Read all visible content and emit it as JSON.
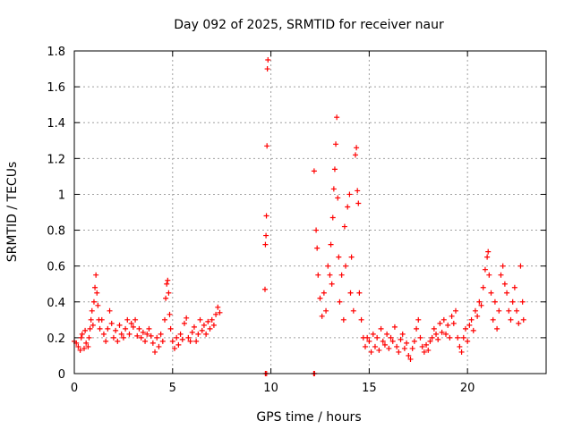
{
  "chart_data": {
    "type": "scatter",
    "title": "Day 092 of 2025, SRMTID for receiver naur",
    "xlabel": "GPS time / hours",
    "ylabel": "SRMTID / TECUs",
    "xlim": [
      0,
      24
    ],
    "ylim": [
      0,
      1.8
    ],
    "grid": true,
    "legend": "none",
    "marker": "+",
    "color": "#ff0000",
    "x_ticks": [
      {
        "value": 0,
        "label": "0"
      },
      {
        "value": 5,
        "label": "5"
      },
      {
        "value": 10,
        "label": "10"
      },
      {
        "value": 15,
        "label": "15"
      },
      {
        "value": 20,
        "label": "20"
      }
    ],
    "y_ticks": [
      {
        "value": 0,
        "label": "0"
      },
      {
        "value": 0.2,
        "label": "0.2"
      },
      {
        "value": 0.4,
        "label": "0.4"
      },
      {
        "value": 0.6,
        "label": "0.6"
      },
      {
        "value": 0.8,
        "label": "0.8"
      },
      {
        "value": 1.0,
        "label": "1"
      },
      {
        "value": 1.2,
        "label": "1.2"
      },
      {
        "value": 1.4,
        "label": "1.4"
      },
      {
        "value": 1.6,
        "label": "1.6"
      },
      {
        "value": 1.8,
        "label": "1.8"
      }
    ],
    "series": [
      {
        "name": "SRMTID",
        "points": [
          [
            0.0,
            0.18
          ],
          [
            0.1,
            0.17
          ],
          [
            0.2,
            0.15
          ],
          [
            0.3,
            0.13
          ],
          [
            0.35,
            0.2
          ],
          [
            0.4,
            0.22
          ],
          [
            0.5,
            0.14
          ],
          [
            0.55,
            0.24
          ],
          [
            0.6,
            0.17
          ],
          [
            0.7,
            0.15
          ],
          [
            0.75,
            0.2
          ],
          [
            0.8,
            0.25
          ],
          [
            0.85,
            0.3
          ],
          [
            0.9,
            0.35
          ],
          [
            0.95,
            0.27
          ],
          [
            1.0,
            0.4
          ],
          [
            1.05,
            0.48
          ],
          [
            1.1,
            0.55
          ],
          [
            1.15,
            0.45
          ],
          [
            1.2,
            0.38
          ],
          [
            1.25,
            0.3
          ],
          [
            1.3,
            0.25
          ],
          [
            1.4,
            0.3
          ],
          [
            1.5,
            0.22
          ],
          [
            1.6,
            0.18
          ],
          [
            1.7,
            0.25
          ],
          [
            1.8,
            0.35
          ],
          [
            1.9,
            0.28
          ],
          [
            2.0,
            0.2
          ],
          [
            2.1,
            0.24
          ],
          [
            2.2,
            0.18
          ],
          [
            2.3,
            0.27
          ],
          [
            2.4,
            0.22
          ],
          [
            2.5,
            0.2
          ],
          [
            2.6,
            0.25
          ],
          [
            2.7,
            0.3
          ],
          [
            2.8,
            0.22
          ],
          [
            2.9,
            0.28
          ],
          [
            3.0,
            0.26
          ],
          [
            3.1,
            0.3
          ],
          [
            3.2,
            0.21
          ],
          [
            3.3,
            0.25
          ],
          [
            3.4,
            0.2
          ],
          [
            3.5,
            0.23
          ],
          [
            3.6,
            0.18
          ],
          [
            3.7,
            0.22
          ],
          [
            3.8,
            0.25
          ],
          [
            3.9,
            0.21
          ],
          [
            4.0,
            0.17
          ],
          [
            4.1,
            0.12
          ],
          [
            4.2,
            0.2
          ],
          [
            4.3,
            0.15
          ],
          [
            4.4,
            0.22
          ],
          [
            4.5,
            0.18
          ],
          [
            4.6,
            0.3
          ],
          [
            4.65,
            0.42
          ],
          [
            4.7,
            0.5
          ],
          [
            4.75,
            0.52
          ],
          [
            4.8,
            0.45
          ],
          [
            4.85,
            0.33
          ],
          [
            4.9,
            0.25
          ],
          [
            5.0,
            0.18
          ],
          [
            5.1,
            0.14
          ],
          [
            5.2,
            0.2
          ],
          [
            5.3,
            0.16
          ],
          [
            5.4,
            0.22
          ],
          [
            5.5,
            0.19
          ],
          [
            5.6,
            0.28
          ],
          [
            5.7,
            0.31
          ],
          [
            5.8,
            0.2
          ],
          [
            5.9,
            0.18
          ],
          [
            6.0,
            0.23
          ],
          [
            6.1,
            0.26
          ],
          [
            6.2,
            0.18
          ],
          [
            6.3,
            0.22
          ],
          [
            6.4,
            0.3
          ],
          [
            6.5,
            0.24
          ],
          [
            6.6,
            0.27
          ],
          [
            6.7,
            0.22
          ],
          [
            6.8,
            0.29
          ],
          [
            6.9,
            0.25
          ],
          [
            7.0,
            0.3
          ],
          [
            7.1,
            0.27
          ],
          [
            7.2,
            0.33
          ],
          [
            7.3,
            0.37
          ],
          [
            7.4,
            0.34
          ],
          [
            9.7,
            0.47
          ],
          [
            9.72,
            0.72
          ],
          [
            9.75,
            0.77
          ],
          [
            9.77,
            0.88
          ],
          [
            9.8,
            1.27
          ],
          [
            9.82,
            1.7
          ],
          [
            9.85,
            1.75
          ],
          [
            12.2,
            1.13
          ],
          [
            12.3,
            0.8
          ],
          [
            12.35,
            0.7
          ],
          [
            12.4,
            0.55
          ],
          [
            12.5,
            0.42
          ],
          [
            12.6,
            0.32
          ],
          [
            12.7,
            0.45
          ],
          [
            12.8,
            0.35
          ],
          [
            12.9,
            0.6
          ],
          [
            13.0,
            0.55
          ],
          [
            13.05,
            0.72
          ],
          [
            13.1,
            0.5
          ],
          [
            13.15,
            0.87
          ],
          [
            13.2,
            1.03
          ],
          [
            13.25,
            1.14
          ],
          [
            13.3,
            1.28
          ],
          [
            13.35,
            1.43
          ],
          [
            13.4,
            0.98
          ],
          [
            13.45,
            0.65
          ],
          [
            13.5,
            0.4
          ],
          [
            13.6,
            0.55
          ],
          [
            13.7,
            0.3
          ],
          [
            13.75,
            0.82
          ],
          [
            13.8,
            0.6
          ],
          [
            13.9,
            0.93
          ],
          [
            14.0,
            1.0
          ],
          [
            14.05,
            0.45
          ],
          [
            14.1,
            0.65
          ],
          [
            14.2,
            0.35
          ],
          [
            14.3,
            1.22
          ],
          [
            14.35,
            1.26
          ],
          [
            14.4,
            1.02
          ],
          [
            14.45,
            0.95
          ],
          [
            14.5,
            0.45
          ],
          [
            14.6,
            0.3
          ],
          [
            14.7,
            0.2
          ],
          [
            14.8,
            0.15
          ],
          [
            14.9,
            0.2
          ],
          [
            15.0,
            0.18
          ],
          [
            15.1,
            0.12
          ],
          [
            15.2,
            0.22
          ],
          [
            15.3,
            0.15
          ],
          [
            15.4,
            0.2
          ],
          [
            15.5,
            0.13
          ],
          [
            15.6,
            0.25
          ],
          [
            15.7,
            0.18
          ],
          [
            15.8,
            0.16
          ],
          [
            15.9,
            0.22
          ],
          [
            16.0,
            0.14
          ],
          [
            16.1,
            0.2
          ],
          [
            16.2,
            0.18
          ],
          [
            16.3,
            0.26
          ],
          [
            16.4,
            0.15
          ],
          [
            16.5,
            0.12
          ],
          [
            16.6,
            0.19
          ],
          [
            16.7,
            0.22
          ],
          [
            16.8,
            0.14
          ],
          [
            16.9,
            0.17
          ],
          [
            17.0,
            0.1
          ],
          [
            17.1,
            0.08
          ],
          [
            17.2,
            0.14
          ],
          [
            17.3,
            0.18
          ],
          [
            17.4,
            0.25
          ],
          [
            17.5,
            0.3
          ],
          [
            17.6,
            0.2
          ],
          [
            17.7,
            0.15
          ],
          [
            17.8,
            0.12
          ],
          [
            17.9,
            0.16
          ],
          [
            18.0,
            0.13
          ],
          [
            18.1,
            0.18
          ],
          [
            18.2,
            0.2
          ],
          [
            18.3,
            0.25
          ],
          [
            18.4,
            0.22
          ],
          [
            18.5,
            0.19
          ],
          [
            18.6,
            0.28
          ],
          [
            18.7,
            0.23
          ],
          [
            18.8,
            0.3
          ],
          [
            18.9,
            0.22
          ],
          [
            19.0,
            0.27
          ],
          [
            19.1,
            0.2
          ],
          [
            19.2,
            0.32
          ],
          [
            19.3,
            0.28
          ],
          [
            19.4,
            0.35
          ],
          [
            19.5,
            0.2
          ],
          [
            19.6,
            0.15
          ],
          [
            19.7,
            0.12
          ],
          [
            19.8,
            0.2
          ],
          [
            19.9,
            0.25
          ],
          [
            20.0,
            0.18
          ],
          [
            20.1,
            0.27
          ],
          [
            20.2,
            0.3
          ],
          [
            20.3,
            0.24
          ],
          [
            20.4,
            0.35
          ],
          [
            20.5,
            0.32
          ],
          [
            20.6,
            0.4
          ],
          [
            20.7,
            0.38
          ],
          [
            20.8,
            0.48
          ],
          [
            20.9,
            0.58
          ],
          [
            21.0,
            0.65
          ],
          [
            21.05,
            0.68
          ],
          [
            21.1,
            0.55
          ],
          [
            21.2,
            0.45
          ],
          [
            21.3,
            0.3
          ],
          [
            21.4,
            0.4
          ],
          [
            21.5,
            0.25
          ],
          [
            21.6,
            0.35
          ],
          [
            21.7,
            0.55
          ],
          [
            21.8,
            0.6
          ],
          [
            21.9,
            0.5
          ],
          [
            22.0,
            0.45
          ],
          [
            22.1,
            0.35
          ],
          [
            22.2,
            0.3
          ],
          [
            22.3,
            0.4
          ],
          [
            22.4,
            0.48
          ],
          [
            22.5,
            0.35
          ],
          [
            22.6,
            0.28
          ],
          [
            22.7,
            0.6
          ],
          [
            22.8,
            0.4
          ],
          [
            22.85,
            0.3
          ],
          [
            9.72,
            0.0
          ],
          [
            9.78,
            0.0
          ],
          [
            12.18,
            0.0
          ],
          [
            12.22,
            0.0
          ]
        ]
      }
    ]
  }
}
